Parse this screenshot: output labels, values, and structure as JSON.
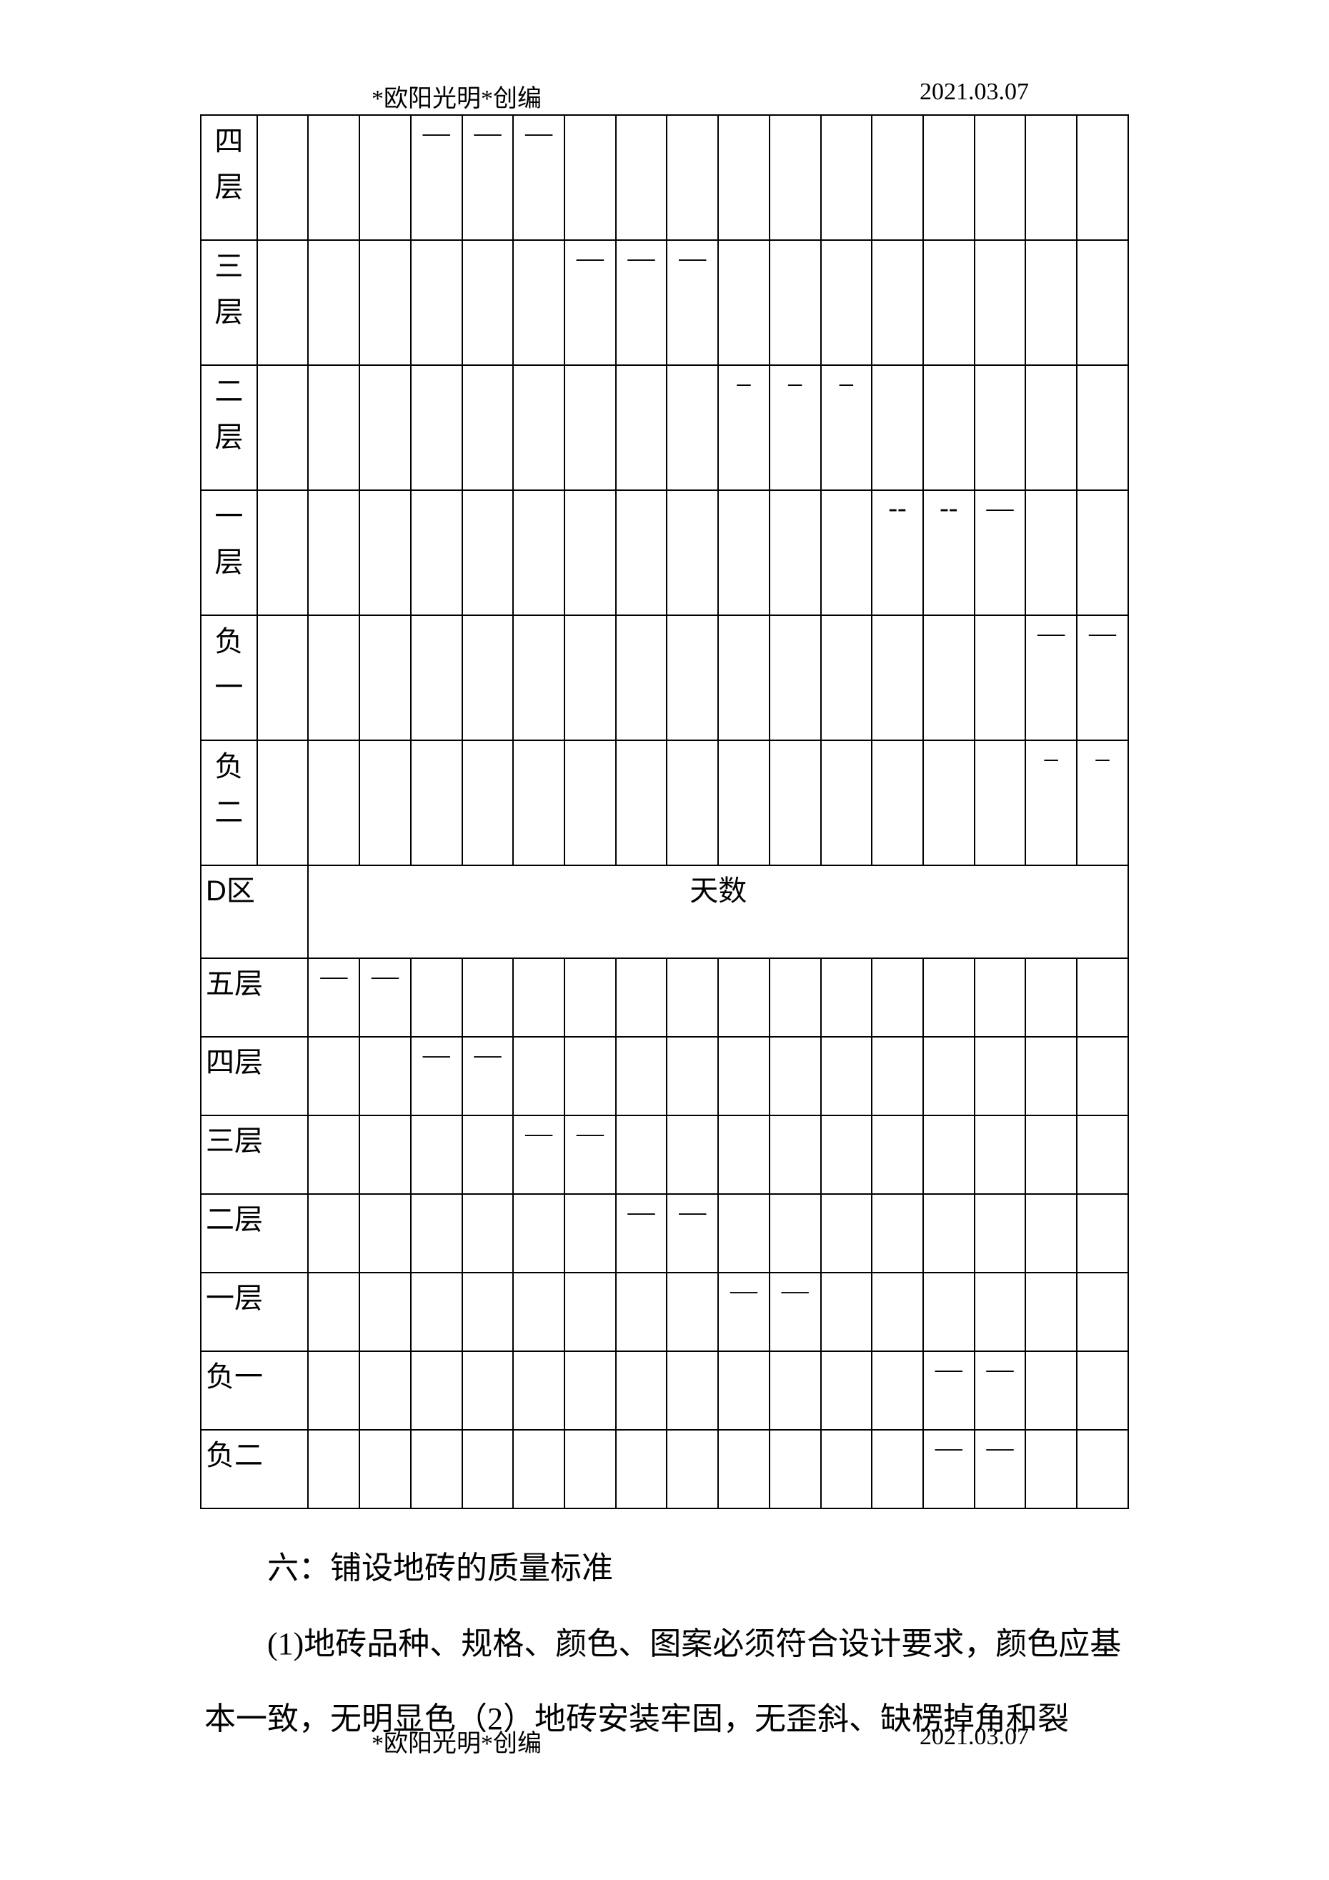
{
  "header": {
    "left": "*欧阳光明*创编",
    "right": "2021.03.07"
  },
  "footer": {
    "left": "*欧阳光明*创编",
    "right": "2021.03.07"
  },
  "dash": "—",
  "shortdash": "–",
  "section1_rows": [
    {
      "label": "四层",
      "marks": [
        null,
        null,
        null,
        "—",
        "—",
        "—",
        null,
        null,
        null,
        null,
        null,
        null,
        null,
        null,
        null,
        null,
        null
      ]
    },
    {
      "label": "三层",
      "marks": [
        null,
        null,
        null,
        null,
        null,
        null,
        "—",
        "—",
        "—",
        null,
        null,
        null,
        null,
        null,
        null,
        null,
        null
      ]
    },
    {
      "label": "二层",
      "marks": [
        null,
        null,
        null,
        null,
        null,
        null,
        null,
        null,
        null,
        "–",
        "–",
        "–",
        null,
        null,
        null,
        null,
        null
      ]
    },
    {
      "label": "一层",
      "marks": [
        null,
        null,
        null,
        null,
        null,
        null,
        null,
        null,
        null,
        null,
        null,
        null,
        "--",
        "--",
        "––",
        null,
        null
      ]
    },
    {
      "label": "负一",
      "marks": [
        null,
        null,
        null,
        null,
        null,
        null,
        null,
        null,
        null,
        null,
        null,
        null,
        null,
        null,
        null,
        "––",
        "––"
      ]
    },
    {
      "label": "负二",
      "marks": [
        null,
        null,
        null,
        null,
        null,
        null,
        null,
        null,
        null,
        null,
        null,
        null,
        null,
        null,
        null,
        "–",
        "–"
      ]
    }
  ],
  "d_zone_label": "D区",
  "d_zone_days": "天数",
  "section2_rows": [
    {
      "label": "五层",
      "marks": [
        "—",
        "—",
        null,
        null,
        null,
        null,
        null,
        null,
        null,
        null,
        null,
        null,
        null,
        null,
        null,
        null
      ]
    },
    {
      "label": "四层",
      "marks": [
        null,
        null,
        "—",
        "—",
        null,
        null,
        null,
        null,
        null,
        null,
        null,
        null,
        null,
        null,
        null,
        null
      ]
    },
    {
      "label": "三层",
      "marks": [
        null,
        null,
        null,
        null,
        "—",
        "—",
        null,
        null,
        null,
        null,
        null,
        null,
        null,
        null,
        null,
        null
      ]
    },
    {
      "label": "二层",
      "marks": [
        null,
        null,
        null,
        null,
        null,
        null,
        "—",
        "—",
        null,
        null,
        null,
        null,
        null,
        null,
        null,
        null
      ]
    },
    {
      "label": "一层",
      "marks": [
        null,
        null,
        null,
        null,
        null,
        null,
        null,
        null,
        "—",
        "—",
        null,
        null,
        null,
        null,
        null,
        null
      ]
    },
    {
      "label": "负一",
      "marks": [
        null,
        null,
        null,
        null,
        null,
        null,
        null,
        null,
        null,
        null,
        null,
        null,
        "—",
        "—",
        null,
        null
      ]
    },
    {
      "label": "负二",
      "marks": [
        null,
        null,
        null,
        null,
        null,
        null,
        null,
        null,
        null,
        null,
        null,
        null,
        "—",
        "—",
        null,
        null
      ]
    }
  ],
  "body": {
    "line1": "六：铺设地砖的质量标准",
    "line2": "(1)地砖品种、规格、颜色、图案必须符合设计要求，颜色应基",
    "line3": "本一致，无明显色（2）地砖安装牢固，无歪斜、缺楞掉角和裂"
  },
  "colors": {
    "border": "#000000",
    "text": "#000000",
    "bg": "#ffffff"
  }
}
